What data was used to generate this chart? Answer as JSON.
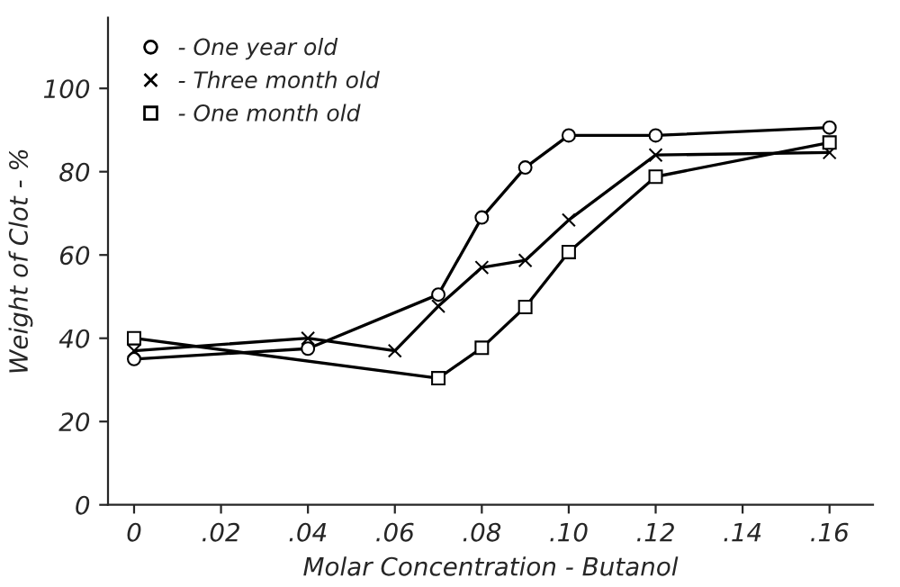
{
  "chart_data": {
    "type": "line",
    "xlabel": "Molar Concentration - Butanol",
    "ylabel": "Weight of Clot - %",
    "xlim": [
      -0.006,
      0.17
    ],
    "xticks": [
      {
        "value": 0,
        "label": "0"
      },
      {
        "value": 0.02,
        "label": ".02"
      },
      {
        "value": 0.04,
        "label": ".04"
      },
      {
        "value": 0.06,
        "label": ".06"
      },
      {
        "value": 0.08,
        "label": ".08"
      },
      {
        "value": 0.1,
        "label": ".10"
      },
      {
        "value": 0.12,
        "label": ".12"
      },
      {
        "value": 0.14,
        "label": ".14"
      },
      {
        "value": 0.16,
        "label": ".16"
      }
    ],
    "ylim": [
      0,
      117
    ],
    "yticks": [
      0,
      20,
      40,
      60,
      80,
      100
    ],
    "grid": false,
    "legend": "top left",
    "line_style": "solid",
    "series": [
      {
        "name": "- One year old",
        "color": "#000000",
        "marker": "circle",
        "x": [
          0,
          0.04,
          0.07,
          0.08,
          0.09,
          0.1,
          0.12,
          0.16
        ],
        "values": [
          35,
          37.5,
          50.5,
          69,
          81,
          88.7,
          88.7,
          90.6
        ]
      },
      {
        "name": "- Three month old",
        "color": "#000000",
        "marker": "cross",
        "x": [
          0,
          0.04,
          0.06,
          0.07,
          0.08,
          0.09,
          0.1,
          0.12,
          0.16
        ],
        "values": [
          37,
          40,
          37,
          47.7,
          57,
          58.7,
          68.4,
          84,
          84.6
        ]
      },
      {
        "name": "- One month old",
        "color": "#000000",
        "marker": "square",
        "x": [
          0,
          0.07,
          0.08,
          0.09,
          0.1,
          0.12,
          0.16
        ],
        "values": [
          40,
          30.4,
          37.7,
          47.5,
          60.7,
          78.8,
          87
        ]
      }
    ]
  }
}
